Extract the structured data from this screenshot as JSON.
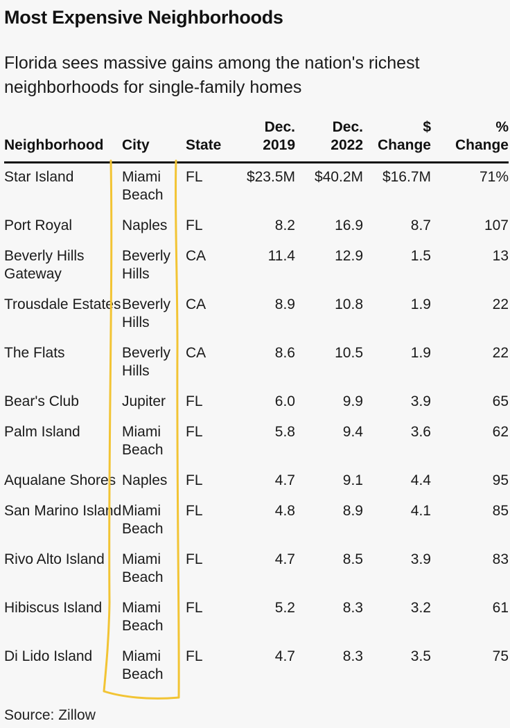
{
  "title": "Most Expensive Neighborhoods",
  "subtitle": "Florida sees massive gains among the nation's richest neighborhoods for single-family homes",
  "source": "Source: Zillow",
  "highlight_color": "#f2c434",
  "chart_data": {
    "type": "table",
    "columns": {
      "neighborhood": "Neighborhood",
      "city": "City",
      "state": "State",
      "dec2019_l1": "Dec.",
      "dec2019_l2": "2019",
      "dec2022_l1": "Dec.",
      "dec2022_l2": "2022",
      "dollar_change_l1": "$",
      "dollar_change_l2": "Change",
      "pct_change_l1": "%",
      "pct_change_l2": "Change"
    },
    "rows": [
      {
        "neighborhood": "Star Island",
        "city": "Miami Beach",
        "state": "FL",
        "dec2019": "$23.5M",
        "dec2022": "$40.2M",
        "dollar_change": "$16.7M",
        "pct_change": "71%"
      },
      {
        "neighborhood": "Port Royal",
        "city": "Naples",
        "state": "FL",
        "dec2019": "8.2",
        "dec2022": "16.9",
        "dollar_change": "8.7",
        "pct_change": "107"
      },
      {
        "neighborhood": "Beverly Hills Gateway",
        "city": "Beverly Hills",
        "state": "CA",
        "dec2019": "11.4",
        "dec2022": "12.9",
        "dollar_change": "1.5",
        "pct_change": "13"
      },
      {
        "neighborhood": "Trousdale Estates",
        "city": "Beverly Hills",
        "state": "CA",
        "dec2019": "8.9",
        "dec2022": "10.8",
        "dollar_change": "1.9",
        "pct_change": "22"
      },
      {
        "neighborhood": "The Flats",
        "city": "Beverly Hills",
        "state": "CA",
        "dec2019": "8.6",
        "dec2022": "10.5",
        "dollar_change": "1.9",
        "pct_change": "22"
      },
      {
        "neighborhood": "Bear's Club",
        "city": "Jupiter",
        "state": "FL",
        "dec2019": "6.0",
        "dec2022": "9.9",
        "dollar_change": "3.9",
        "pct_change": "65"
      },
      {
        "neighborhood": "Palm Island",
        "city": "Miami Beach",
        "state": "FL",
        "dec2019": "5.8",
        "dec2022": "9.4",
        "dollar_change": "3.6",
        "pct_change": "62"
      },
      {
        "neighborhood": "Aqualane Shores",
        "city": "Naples",
        "state": "FL",
        "dec2019": "4.7",
        "dec2022": "9.1",
        "dollar_change": "4.4",
        "pct_change": "95"
      },
      {
        "neighborhood": "San Marino Island",
        "city": "Miami Beach",
        "state": "FL",
        "dec2019": "4.8",
        "dec2022": "8.9",
        "dollar_change": "4.1",
        "pct_change": "85"
      },
      {
        "neighborhood": "Rivo Alto Island",
        "city": "Miami Beach",
        "state": "FL",
        "dec2019": "4.7",
        "dec2022": "8.5",
        "dollar_change": "3.9",
        "pct_change": "83"
      },
      {
        "neighborhood": "Hibiscus Island",
        "city": "Miami Beach",
        "state": "FL",
        "dec2019": "5.2",
        "dec2022": "8.3",
        "dollar_change": "3.2",
        "pct_change": "61"
      },
      {
        "neighborhood": "Di Lido Island",
        "city": "Miami Beach",
        "state": "FL",
        "dec2019": "4.7",
        "dec2022": "8.3",
        "dollar_change": "3.5",
        "pct_change": "75"
      }
    ]
  }
}
